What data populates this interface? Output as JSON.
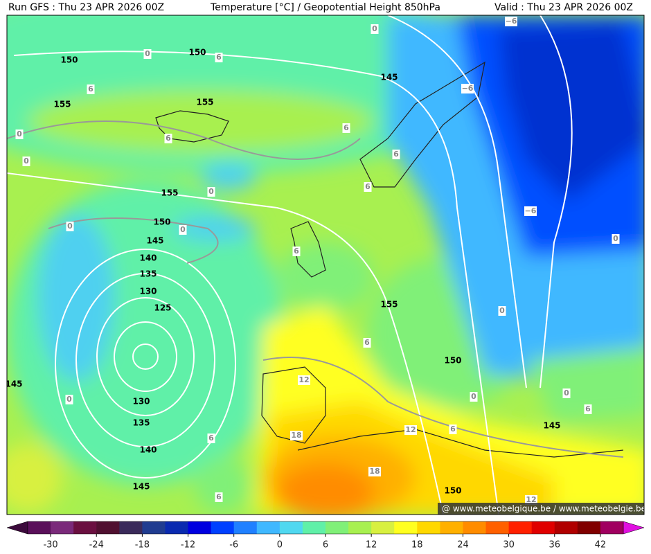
{
  "header": {
    "left": "Run GFS : Thu 23 APR 2026 00Z",
    "center": "Temperature [°C] / Geopotential Height 850hPa",
    "right": "Valid : Thu 23 APR 2026 00Z"
  },
  "height_labels": [
    "150",
    "150",
    "145",
    "155",
    "155",
    "155",
    "150",
    "145",
    "140",
    "135",
    "130",
    "125",
    "155",
    "150",
    "145",
    "130",
    "135",
    "145",
    "140",
    "145",
    "150"
  ],
  "temperature_labels": [
    "0",
    "6",
    "0",
    "−6",
    "−6",
    "6",
    "6",
    "6",
    "0",
    "6",
    "0",
    "6",
    "0",
    "0",
    "0",
    "−6",
    "0",
    "6",
    "0",
    "6",
    "12",
    "0",
    "0",
    "0",
    "6",
    "12",
    "6",
    "18",
    "6",
    "18",
    "6",
    "12"
  ],
  "credit": "@ www.meteobelgique.be / www.meteobelgie.be",
  "colorbar": {
    "range": [
      -33,
      45
    ],
    "ticks": [
      -30,
      -24,
      -18,
      -12,
      -6,
      0,
      6,
      12,
      18,
      24,
      30,
      36,
      42
    ],
    "under_color": "#3c0a3c",
    "over_color": "#e010e0",
    "colors": [
      "#5a0f5a",
      "#7a2a7a",
      "#6a1040",
      "#501030",
      "#3a2a5a",
      "#203c90",
      "#0a2ab0",
      "#0000e0",
      "#0040ff",
      "#2080ff",
      "#40b8ff",
      "#50d8f0",
      "#60f0a8",
      "#80f078",
      "#a8f050",
      "#d8f040",
      "#ffff20",
      "#ffd800",
      "#ffb000",
      "#ff8c00",
      "#ff6000",
      "#ff2000",
      "#e00000",
      "#b00000",
      "#800000",
      "#a00060"
    ]
  }
}
